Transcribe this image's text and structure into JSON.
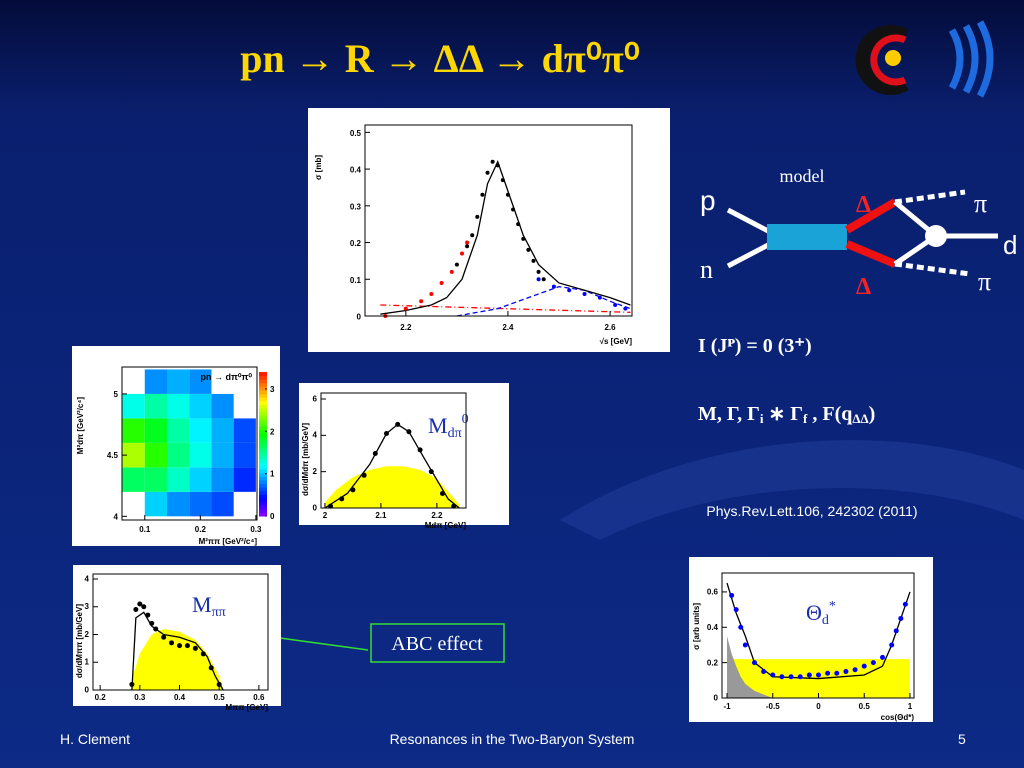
{
  "slide": {
    "title": "pn → R → ΔΔ → dπ⁰π⁰",
    "footer": {
      "left": "H. Clement",
      "center": "Resonances in the Two-Baryon System",
      "page": "5"
    }
  },
  "plots": [
    {
      "type": "plot",
      "ylabel": "σ [mb]",
      "xlabel": "√s [GeV]",
      "xlim": [
        2.12,
        2.643
      ],
      "ylim": [
        0,
        0.52
      ],
      "xticks": [
        2.2,
        2.4,
        2.6
      ],
      "yticks": [
        0,
        0.1,
        0.2,
        0.3,
        0.4,
        0.5
      ],
      "series": [
        {
          "type": "line",
          "color": "#ff0000",
          "style": "dashdot",
          "x": [
            2.15,
            2.64
          ],
          "values": [
            0.03,
            0.01
          ]
        },
        {
          "type": "line",
          "color": "#0000ff",
          "style": "dashed",
          "x": [
            2.3,
            2.38,
            2.44,
            2.5,
            2.55,
            2.6,
            2.64
          ],
          "values": [
            0,
            0.02,
            0.05,
            0.08,
            0.07,
            0.04,
            0.02
          ]
        },
        {
          "type": "line",
          "color": "#000000",
          "style": "solid",
          "x": [
            2.15,
            2.2,
            2.25,
            2.28,
            2.31,
            2.34,
            2.36,
            2.38,
            2.4,
            2.43,
            2.46,
            2.5,
            2.55,
            2.6,
            2.64
          ],
          "values": [
            0.005,
            0.015,
            0.03,
            0.05,
            0.1,
            0.22,
            0.36,
            0.42,
            0.34,
            0.22,
            0.14,
            0.09,
            0.07,
            0.05,
            0.03
          ]
        },
        {
          "type": "scatter",
          "color": "#ff0000",
          "x": [
            2.16,
            2.2,
            2.23,
            2.25,
            2.27,
            2.29,
            2.31,
            2.32
          ],
          "values": [
            0,
            0.02,
            0.04,
            0.06,
            0.09,
            0.12,
            0.17,
            0.2
          ]
        },
        {
          "type": "scatter",
          "color": "#0000ff",
          "x": [
            2.46,
            2.49,
            2.52,
            2.55,
            2.58,
            2.61,
            2.63
          ],
          "values": [
            0.1,
            0.08,
            0.07,
            0.06,
            0.05,
            0.03,
            0.02
          ]
        },
        {
          "type": "scatter",
          "color": "#000000",
          "x": [
            2.3,
            2.32,
            2.33,
            2.34,
            2.35,
            2.36,
            2.37,
            2.38,
            2.39,
            2.4,
            2.41,
            2.42,
            2.43,
            2.44,
            2.45,
            2.46,
            2.47
          ],
          "values": [
            0.14,
            0.19,
            0.22,
            0.27,
            0.33,
            0.39,
            0.42,
            0.41,
            0.37,
            0.33,
            0.29,
            0.25,
            0.21,
            0.18,
            0.15,
            0.12,
            0.1
          ]
        }
      ]
    },
    {
      "type": "heatmap",
      "title": "pn → dπ⁰π⁰",
      "ylabel": "M²dπ [GeV²/c⁴]",
      "xlabel": "M²ππ [GeV²/c⁴]",
      "xlim": [
        0.059,
        0.302
      ],
      "ylim": [
        3.97,
        5.22
      ],
      "xticks": [
        0.1,
        0.2,
        0.3
      ],
      "yticks": [
        4,
        4.5,
        5
      ],
      "zlim": [
        0,
        3.4
      ],
      "zticks": [
        0,
        1,
        2,
        3
      ],
      "x": [
        0.08,
        0.12,
        0.16,
        0.2,
        0.24,
        0.28
      ],
      "y": [
        4.1,
        4.3,
        4.5,
        4.7,
        4.9,
        5.1
      ],
      "z": [
        [
          null,
          1.0,
          0.8,
          0.7,
          0.6,
          null
        ],
        [
          1.6,
          1.6,
          1.3,
          1.0,
          0.8,
          0.5
        ],
        [
          2.4,
          2.0,
          1.5,
          1.2,
          0.9,
          0.6
        ],
        [
          2.0,
          1.8,
          1.4,
          1.1,
          0.9,
          0.6
        ],
        [
          1.2,
          1.4,
          1.2,
          1.0,
          0.8,
          null
        ],
        [
          null,
          0.8,
          0.9,
          0.8,
          null,
          null
        ]
      ]
    },
    {
      "type": "plot",
      "ylabel": "dσ/dMdπ [mb/GeV]",
      "xlabel": "Mdπ [GeV]",
      "label": [
        "M",
        "dπ",
        "0"
      ],
      "xlim": [
        1.993,
        2.252
      ],
      "ylim": [
        0,
        6.33
      ],
      "xticks": [
        2,
        2.1,
        2.2
      ],
      "yticks": [
        0,
        2,
        4,
        6
      ],
      "series": [
        {
          "type": "area",
          "color": "#ffff00",
          "x": [
            2.0,
            2.02,
            2.05,
            2.08,
            2.11,
            2.14,
            2.17,
            2.2,
            2.22,
            2.24
          ],
          "values": [
            0.3,
            1.0,
            1.7,
            2.1,
            2.3,
            2.3,
            2.1,
            1.6,
            0.9,
            0.2
          ]
        },
        {
          "type": "line",
          "color": "#000000",
          "style": "solid",
          "x": [
            2.0,
            2.04,
            2.08,
            2.11,
            2.13,
            2.15,
            2.18,
            2.22,
            2.24
          ],
          "values": [
            0,
            0.8,
            2.4,
            4.1,
            4.6,
            4.2,
            2.6,
            0.5,
            0
          ]
        },
        {
          "type": "scatter",
          "color": "#000000",
          "x": [
            2.01,
            2.03,
            2.05,
            2.07,
            2.09,
            2.11,
            2.13,
            2.15,
            2.17,
            2.19,
            2.21,
            2.23
          ],
          "values": [
            0.1,
            0.5,
            1.0,
            1.8,
            3.0,
            4.1,
            4.6,
            4.2,
            3.2,
            2.0,
            0.8,
            0.1
          ]
        }
      ]
    },
    {
      "type": "plot",
      "ylabel": "dσ/dMππ [mb/GeV]",
      "xlabel": "Mππ [GeV]",
      "label": [
        "M",
        "ππ",
        ""
      ],
      "xlim": [
        0.182,
        0.623
      ],
      "ylim": [
        0,
        4.18
      ],
      "xticks": [
        0.2,
        0.3,
        0.4,
        0.5,
        0.6
      ],
      "yticks": [
        0,
        1,
        2,
        3,
        4
      ],
      "series": [
        {
          "type": "area",
          "color": "#ffff00",
          "x": [
            0.28,
            0.3,
            0.33,
            0.36,
            0.4,
            0.44,
            0.47,
            0.5,
            0.51
          ],
          "values": [
            0.4,
            1.3,
            2.0,
            2.2,
            2.1,
            1.8,
            1.3,
            0.5,
            0
          ]
        },
        {
          "type": "line",
          "color": "#000000",
          "style": "solid",
          "x": [
            0.28,
            0.29,
            0.31,
            0.33,
            0.36,
            0.4,
            0.44,
            0.47,
            0.49,
            0.51
          ],
          "values": [
            0,
            2.6,
            2.8,
            2.3,
            2.0,
            1.9,
            1.7,
            1.2,
            0.5,
            0
          ]
        },
        {
          "type": "scatter",
          "color": "#000000",
          "x": [
            0.28,
            0.29,
            0.3,
            0.31,
            0.32,
            0.33,
            0.34,
            0.36,
            0.38,
            0.4,
            0.42,
            0.44,
            0.46,
            0.48,
            0.5
          ],
          "values": [
            0.2,
            2.9,
            3.1,
            3.0,
            2.7,
            2.4,
            2.2,
            1.9,
            1.7,
            1.6,
            1.6,
            1.5,
            1.3,
            0.8,
            0.2
          ]
        }
      ]
    },
    {
      "type": "plot",
      "ylabel": "σ [arb units]",
      "xlabel": "cos(Θd*)",
      "label": [
        "Θ",
        "d",
        "*"
      ],
      "xlim": [
        -1.055,
        1.044
      ],
      "ylim": [
        0,
        0.707
      ],
      "xticks": [
        -1,
        -0.5,
        0,
        0.5,
        1
      ],
      "yticks": [
        0,
        0.2,
        0.4,
        0.6
      ],
      "series": [
        {
          "type": "area",
          "color": "#ffff00",
          "x": [
            -1,
            -0.6,
            1
          ],
          "values": [
            0.22,
            0.22,
            0.22
          ]
        },
        {
          "type": "area",
          "color": "#999999",
          "x": [
            -1,
            -0.95,
            -0.9,
            -0.85,
            -0.8,
            -0.7,
            -0.6,
            -0.5
          ],
          "values": [
            0.35,
            0.25,
            0.18,
            0.12,
            0.08,
            0.04,
            0.02,
            0
          ]
        },
        {
          "type": "line",
          "color": "#000000",
          "style": "solid",
          "x": [
            -1,
            -0.9,
            -0.8,
            -0.7,
            -0.5,
            0,
            0.5,
            0.7,
            0.8,
            0.9,
            1
          ],
          "values": [
            0.65,
            0.48,
            0.35,
            0.2,
            0.12,
            0.11,
            0.13,
            0.18,
            0.3,
            0.45,
            0.6
          ]
        },
        {
          "type": "scatter",
          "color": "#0000ff",
          "x": [
            -0.95,
            -0.9,
            -0.85,
            -0.8,
            -0.7,
            -0.6,
            -0.5,
            -0.4,
            -0.3,
            -0.2,
            -0.1,
            0,
            0.1,
            0.2,
            0.3,
            0.4,
            0.5,
            0.6,
            0.7,
            0.8,
            0.85,
            0.9,
            0.95
          ],
          "values": [
            0.58,
            0.5,
            0.4,
            0.3,
            0.2,
            0.15,
            0.13,
            0.12,
            0.12,
            0.12,
            0.13,
            0.13,
            0.14,
            0.14,
            0.15,
            0.16,
            0.18,
            0.2,
            0.23,
            0.3,
            0.38,
            0.45,
            0.53
          ]
        }
      ]
    }
  ],
  "diagram": {
    "label": "model",
    "p": "p",
    "n": "n",
    "delta_top": "Δ",
    "delta_bottom": "Δ",
    "pi_top": "π",
    "pi_bottom": "π",
    "d": "d"
  },
  "notes": {
    "quantum_numbers": "I (Jᴾ) = 0 (3⁺)",
    "parameters": [
      "M, Γ, Γ",
      "i",
      " ∗ Γ",
      "f",
      " , F(q",
      "ΔΔ",
      ")"
    ],
    "reference": "Phys.Rev.Lett.106, 242302 (2011)",
    "abc": "ABC effect"
  }
}
